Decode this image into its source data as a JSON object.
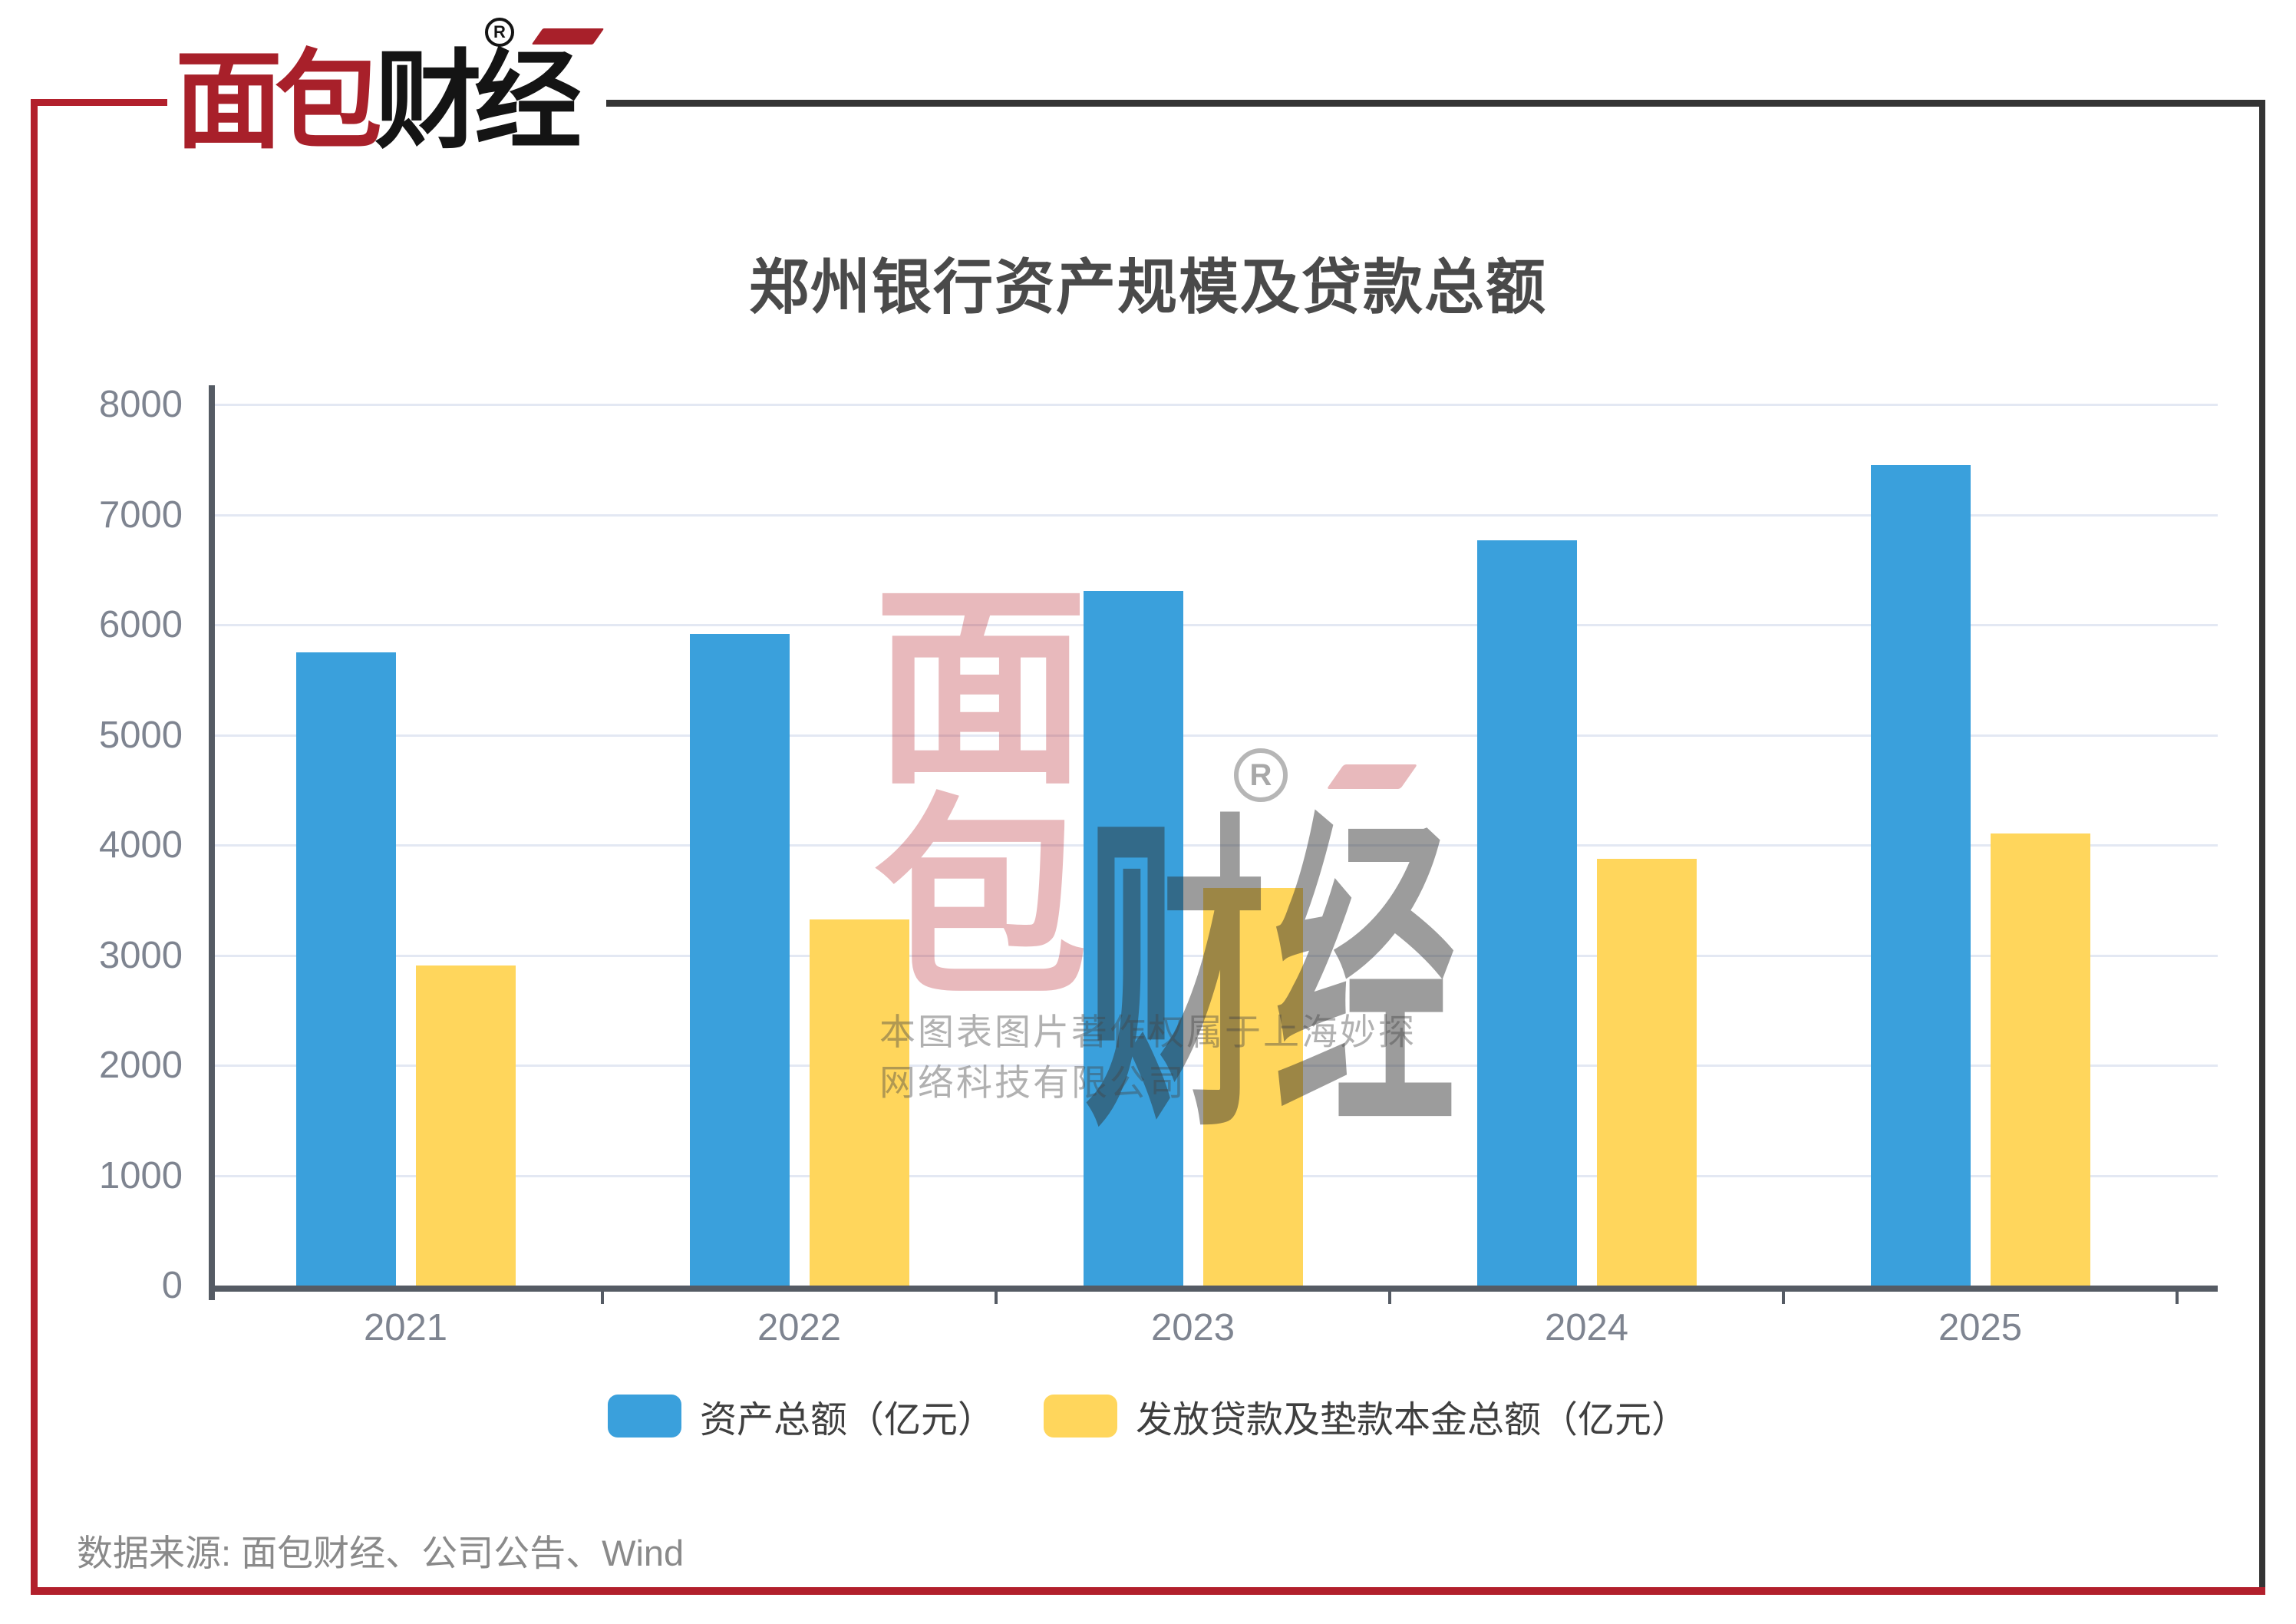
{
  "brand": {
    "logo_red_text": "面包",
    "logo_black_text": "财经",
    "registered_mark": "R"
  },
  "chart_data": {
    "type": "bar",
    "title": "郑州银行资产规模及贷款总额",
    "categories": [
      "2021",
      "2022",
      "2023",
      "2024",
      "2025"
    ],
    "series": [
      {
        "name": "资产总额（亿元）",
        "color": "#3AA0DC",
        "values": [
          5748,
          5915,
          6307,
          6764,
          7446
        ]
      },
      {
        "name": "发放贷款及垫款本金总额（亿元）",
        "color": "#FFD65C",
        "values": [
          2903,
          3321,
          3610,
          3877,
          4108
        ]
      }
    ],
    "xlabel": "",
    "ylabel": "",
    "ylim": [
      0,
      8000
    ],
    "yticks": [
      0,
      1000,
      2000,
      3000,
      4000,
      5000,
      6000,
      7000,
      8000
    ],
    "grid": true,
    "legend_position": "bottom"
  },
  "watermark": {
    "glyph_top": "面",
    "glyph_bottom": "包",
    "glyph_right": "财经",
    "registered_mark": "R",
    "copyright_line1": "本图表图片著作权属于上海妙探",
    "copyright_line2": "网络科技有限公司"
  },
  "source_note": "数据来源: 面包财经、公司公告、Wind",
  "colors": {
    "bar_blue": "#3AA0DC",
    "bar_yellow": "#FFD65C",
    "frame_red": "#B2202C",
    "frame_dark": "#343434",
    "logo_red": "#A8202A",
    "axis": "#555B64",
    "gridline": "#E3E8F3",
    "tick_label": "#7E8490",
    "title_text": "#4A4A4A",
    "legend_text": "#3F3F3F",
    "source_text": "#8A8A8A"
  }
}
